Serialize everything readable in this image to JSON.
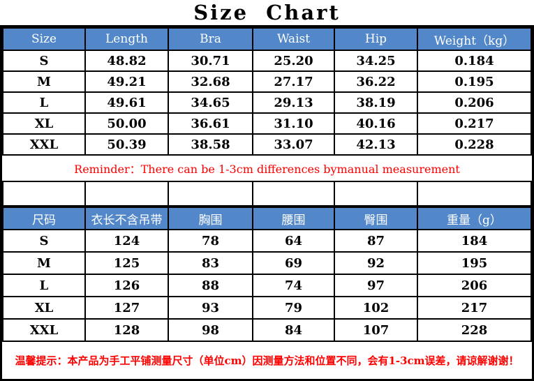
{
  "title": "Size Chart",
  "colors": {
    "header_bg": "#5287c9",
    "header_text": "#ffffff",
    "warning_red": "#ff0000",
    "grid_border": "#000000"
  },
  "size_table_inches": {
    "headers": [
      "Size",
      "Length",
      "Bra",
      "Waist",
      "Hip",
      "Weight（kg）"
    ],
    "rows": [
      [
        "S",
        "48.82",
        "30.71",
        "25.20",
        "34.25",
        "0.184"
      ],
      [
        "M",
        "49.21",
        "32.68",
        "27.17",
        "36.22",
        "0.195"
      ],
      [
        "L",
        "49.61",
        "34.65",
        "29.13",
        "38.19",
        "0.206"
      ],
      [
        "XL",
        "50.00",
        "36.61",
        "31.10",
        "40.16",
        "0.217"
      ],
      [
        "XXL",
        "50.39",
        "38.58",
        "33.07",
        "42.13",
        "0.228"
      ]
    ]
  },
  "reminder_note": "Reminder：There can be 1-3cm differences bymanual measurement",
  "size_table_cm": {
    "headers": [
      "尺码",
      "衣长不含吊带",
      "胸围",
      "腰围",
      "臀围",
      "重量（g）"
    ],
    "rows": [
      [
        "S",
        "124",
        "78",
        "64",
        "87",
        "184"
      ],
      [
        "M",
        "125",
        "83",
        "69",
        "92",
        "195"
      ],
      [
        "L",
        "126",
        "88",
        "74",
        "97",
        "206"
      ],
      [
        "XL",
        "127",
        "93",
        "79",
        "102",
        "217"
      ],
      [
        "XXL",
        "128",
        "98",
        "84",
        "107",
        "228"
      ]
    ]
  },
  "footnote": "温馨提示：本产品为手工平铺测量尺寸（单位cm）因测量方法和位置不同，会有1-3cm误差，请谅解谢谢！"
}
